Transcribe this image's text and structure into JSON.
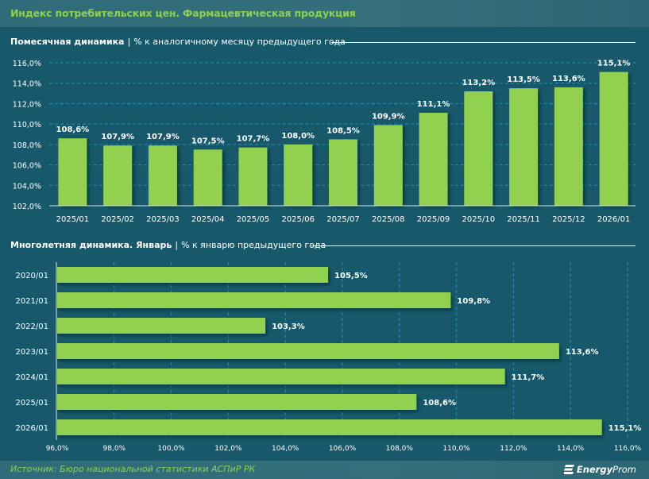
{
  "header": {
    "title": "Индекс потребительских цен. Фармацевтическая продукция"
  },
  "colors": {
    "background": "#17596a",
    "bar": "#92d050",
    "accent": "#8fd14f",
    "grid": "#2aa0c0",
    "text": "#ffffff"
  },
  "sections": {
    "monthly": {
      "title_bold": "Помесячная динамика",
      "separator": "|",
      "subtitle": "% к аналогичному месяцу предыдущего года"
    },
    "january": {
      "title_bold": "Многолетняя динамика. Январь",
      "separator": "|",
      "subtitle": "% к январю предыдущего года"
    }
  },
  "footer": {
    "source": "Источник: Бюро национальной статистики АСПиР РК",
    "logo_bold": "Energy",
    "logo_rest": "Prom",
    "logo_icon": "energyprom-logo-icon"
  },
  "chart_data": [
    {
      "type": "bar",
      "orientation": "vertical",
      "title": "Помесячная динамика | % к аналогичному месяцу предыдущего года",
      "categories": [
        "2025/01",
        "2025/02",
        "2025/03",
        "2025/04",
        "2025/05",
        "2025/06",
        "2025/07",
        "2025/08",
        "2025/09",
        "2025/10",
        "2025/11",
        "2025/12",
        "2026/01"
      ],
      "values": [
        108.6,
        107.9,
        107.9,
        107.5,
        107.7,
        108.0,
        108.5,
        109.9,
        111.1,
        113.2,
        113.5,
        113.6,
        115.1
      ],
      "labels": [
        "108,6%",
        "107,9%",
        "107,9%",
        "107,5%",
        "107,7%",
        "108,0%",
        "108,5%",
        "109,9%",
        "111,1%",
        "113,2%",
        "113,5%",
        "113,6%",
        "115,1%"
      ],
      "ylim": [
        102,
        116
      ],
      "yticks": [
        102,
        104,
        106,
        108,
        110,
        112,
        114,
        116
      ],
      "ytick_labels": [
        "102,0%",
        "104,0%",
        "106,0%",
        "108,0%",
        "110,0%",
        "112,0%",
        "114,0%",
        "116,0%"
      ],
      "grid": true,
      "legend": "none"
    },
    {
      "type": "bar",
      "orientation": "horizontal",
      "title": "Многолетняя динамика. Январь | % к январю предыдущего года",
      "categories": [
        "2020/01",
        "2021/01",
        "2022/01",
        "2023/01",
        "2024/01",
        "2025/01",
        "2026/01"
      ],
      "values": [
        105.5,
        109.8,
        103.3,
        113.6,
        111.7,
        108.6,
        115.1
      ],
      "labels": [
        "105,5%",
        "109,8%",
        "103,3%",
        "113,6%",
        "111,7%",
        "108,6%",
        "115,1%"
      ],
      "xlim": [
        96,
        116
      ],
      "xticks": [
        96,
        98,
        100,
        102,
        104,
        106,
        108,
        110,
        112,
        114,
        116
      ],
      "xtick_labels": [
        "96,0%",
        "98,0%",
        "100,0%",
        "102,0%",
        "104,0%",
        "106,0%",
        "108,0%",
        "110,0%",
        "112,0%",
        "114,0%",
        "116,0%"
      ],
      "grid": true,
      "legend": "none"
    }
  ]
}
